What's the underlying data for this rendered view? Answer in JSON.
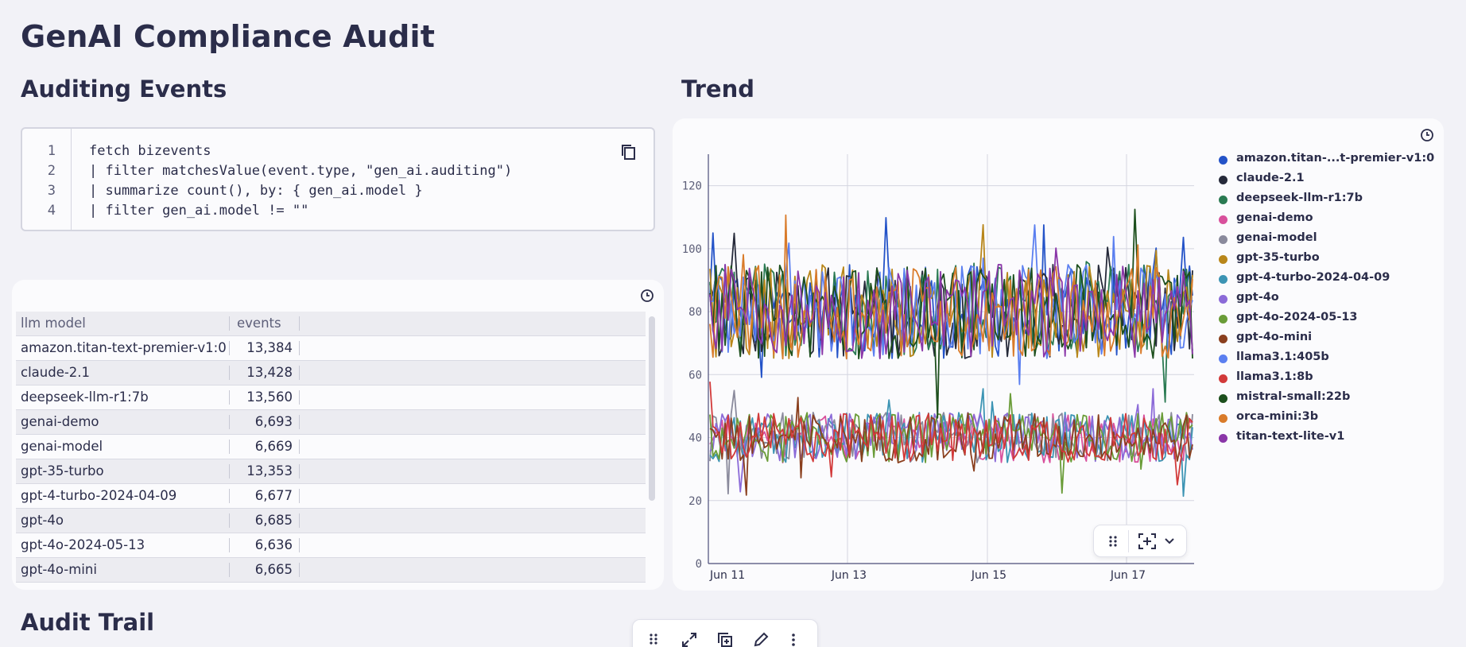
{
  "page": {
    "title": "GenAI Compliance Audit"
  },
  "sections": {
    "events": "Auditing Events",
    "trend": "Trend",
    "audit": "Audit Trail"
  },
  "query": {
    "lines": [
      "fetch bizevents",
      "| filter matchesValue(event.type, \"gen_ai.auditing\")",
      "| summarize count(), by: { gen_ai.model }",
      "| filter gen_ai.model != \"\""
    ],
    "line_numbers": [
      "1",
      "2",
      "3",
      "4"
    ]
  },
  "table": {
    "columns": [
      "llm model",
      "events"
    ],
    "rows": [
      {
        "model": "amazon.titan-text-premier-v1:0",
        "events": "13,384"
      },
      {
        "model": "claude-2.1",
        "events": "13,428"
      },
      {
        "model": "deepseek-llm-r1:7b",
        "events": "13,560"
      },
      {
        "model": "genai-demo",
        "events": "6,693"
      },
      {
        "model": "genai-model",
        "events": "6,669"
      },
      {
        "model": "gpt-35-turbo",
        "events": "13,353"
      },
      {
        "model": "gpt-4-turbo-2024-04-09",
        "events": "6,677"
      },
      {
        "model": "gpt-4o",
        "events": "6,685"
      },
      {
        "model": "gpt-4o-2024-05-13",
        "events": "6,636"
      },
      {
        "model": "gpt-4o-mini",
        "events": "6,665"
      }
    ]
  },
  "chart_data": {
    "type": "line",
    "title": "Trend",
    "xlabel": "",
    "ylabel": "",
    "ylim": [
      0,
      130
    ],
    "yticks": [
      0,
      20,
      40,
      60,
      80,
      100,
      120
    ],
    "x_ticks": [
      "Jun 11",
      "Jun 13",
      "Jun 15",
      "Jun 17"
    ],
    "series": [
      {
        "name": "amazon.titan-...t-premier-v1:0",
        "color": "#2453c8",
        "level": 80,
        "spread": 15
      },
      {
        "name": "claude-2.1",
        "color": "#262a3a",
        "level": 80,
        "spread": 15
      },
      {
        "name": "deepseek-llm-r1:7b",
        "color": "#2a7a52",
        "level": 81,
        "spread": 15
      },
      {
        "name": "genai-demo",
        "color": "#d8509c",
        "level": 40,
        "spread": 8
      },
      {
        "name": "genai-model",
        "color": "#8a8a9c",
        "level": 40,
        "spread": 8
      },
      {
        "name": "gpt-35-turbo",
        "color": "#b8861a",
        "level": 80,
        "spread": 15
      },
      {
        "name": "gpt-4-turbo-2024-04-09",
        "color": "#3c94b4",
        "level": 40,
        "spread": 8
      },
      {
        "name": "gpt-4o",
        "color": "#8b6ad8",
        "level": 40,
        "spread": 8
      },
      {
        "name": "gpt-4o-2024-05-13",
        "color": "#6a9c38",
        "level": 40,
        "spread": 8
      },
      {
        "name": "gpt-4o-mini",
        "color": "#8a3f1e",
        "level": 40,
        "spread": 8
      },
      {
        "name": "llama3.1:405b",
        "color": "#5b7ff0",
        "level": 80,
        "spread": 15
      },
      {
        "name": "llama3.1:8b",
        "color": "#d23a3a",
        "level": 40,
        "spread": 8
      },
      {
        "name": "mistral-small:22b",
        "color": "#1d4f1d",
        "level": 80,
        "spread": 15
      },
      {
        "name": "orca-mini:3b",
        "color": "#d97b2a",
        "level": 80,
        "spread": 15
      },
      {
        "name": "titan-text-lite-v1",
        "color": "#8a36a8",
        "level": 80,
        "spread": 15
      }
    ]
  }
}
